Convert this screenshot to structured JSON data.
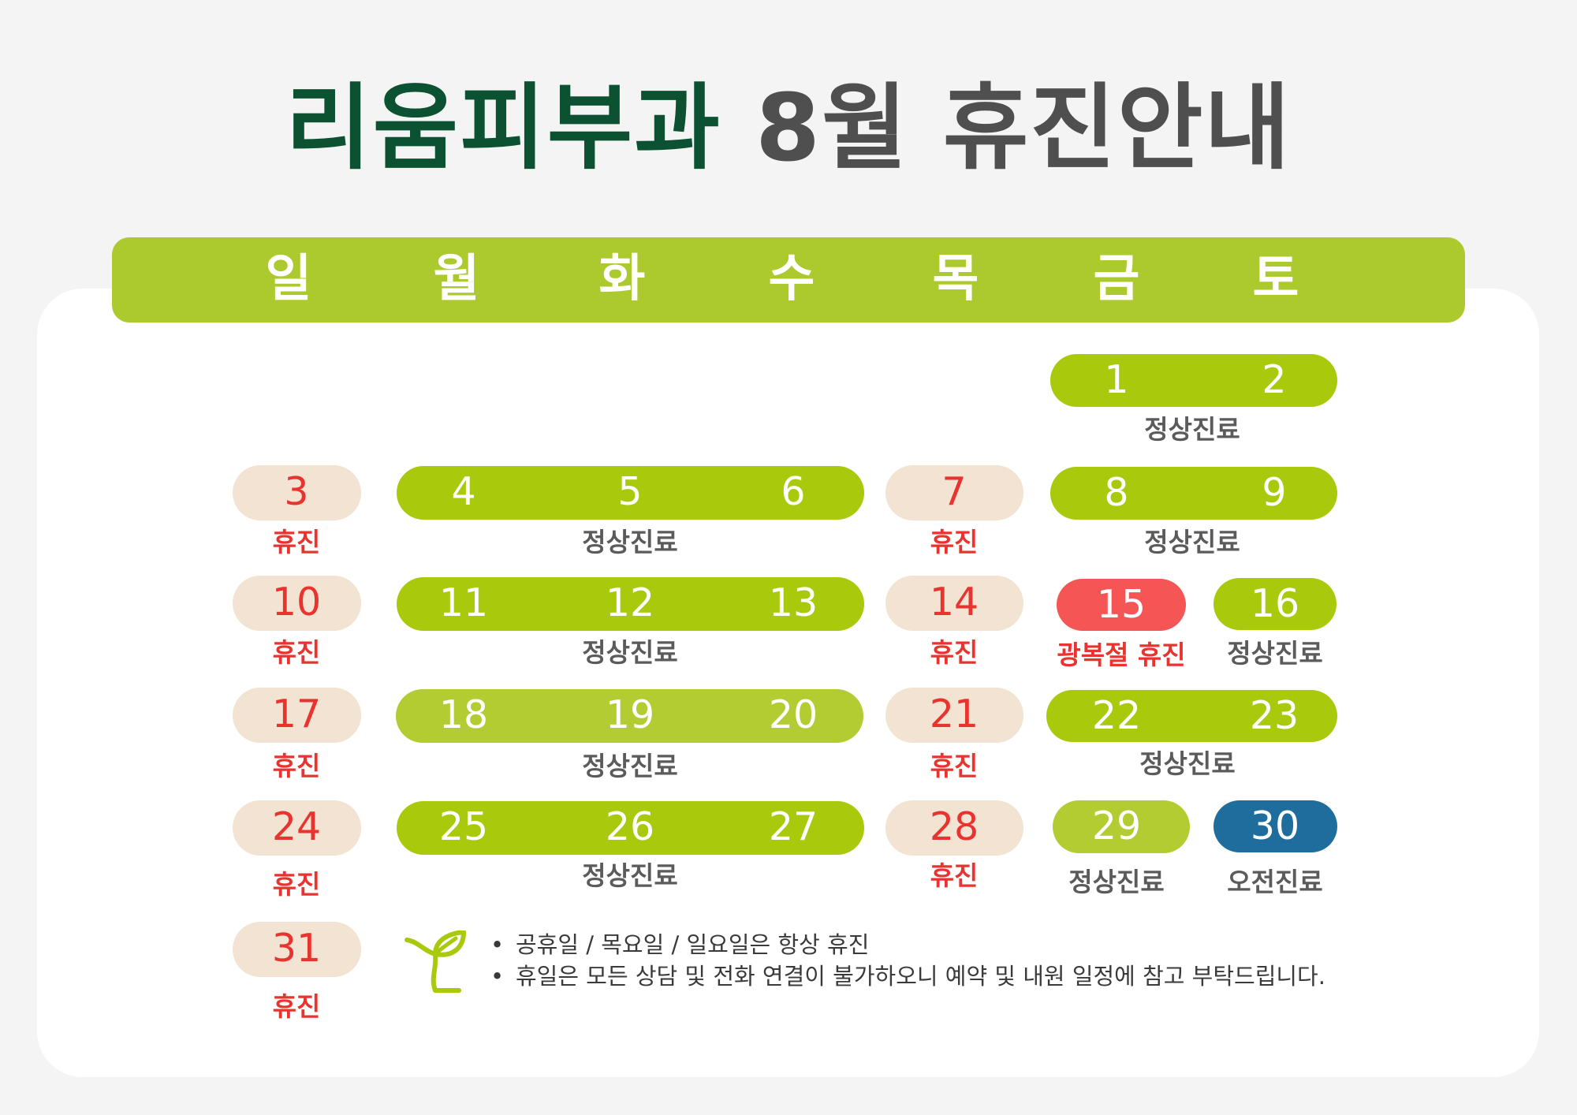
{
  "title": {
    "clinic": "리움피부과",
    "rest": "8월 휴진안내"
  },
  "weekdays": [
    "일",
    "월",
    "화",
    "수",
    "목",
    "금",
    "토"
  ],
  "dates": {
    "d1": "1",
    "d2": "2",
    "d3": "3",
    "d4": "4",
    "d5": "5",
    "d6": "6",
    "d7": "7",
    "d8": "8",
    "d9": "9",
    "d10": "10",
    "d11": "11",
    "d12": "12",
    "d13": "13",
    "d14": "14",
    "d15": "15",
    "d16": "16",
    "d17": "17",
    "d18": "18",
    "d19": "19",
    "d20": "20",
    "d21": "21",
    "d22": "22",
    "d23": "23",
    "d24": "24",
    "d25": "25",
    "d26": "26",
    "d27": "27",
    "d28": "28",
    "d29": "29",
    "d30": "30",
    "d31": "31"
  },
  "labels": {
    "normal": "정상진료",
    "closed": "휴진",
    "liberation": "광복절 휴진",
    "morning": "오전진료"
  },
  "notes": [
    "공휴일 / 목요일 / 일요일은 항상 휴진",
    "휴일은 모든 상담 및 전화 연결이 불가하오니 예약 및 내원 일정에 참고 부탁드립니다."
  ],
  "colors": {
    "title_green": "#0b5132",
    "title_gray": "#4f4f4f",
    "header_green": "#acca2d",
    "pill_green": "#a8c90c",
    "pill_light_green": "#b2cc32",
    "pill_beige": "#f2e3d2",
    "holiday_red": "#f55554",
    "morning_blue": "#1e6d9c",
    "closed_text_red": "#e8332f"
  },
  "icons": {
    "logo": "sprout-icon"
  }
}
